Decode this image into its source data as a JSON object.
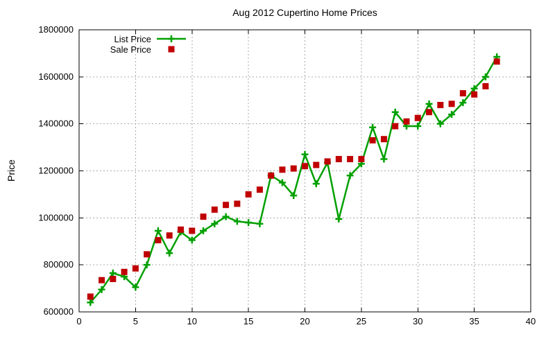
{
  "title": "Aug 2012 Cupertino Home Prices",
  "y_axis_label": "Price",
  "colors": {
    "list_price": "#00a000",
    "sale_price": "#c00000",
    "grid": "#a8a8a8",
    "axis": "#000000"
  },
  "legend": {
    "position": "top-left-inside",
    "entries": [
      {
        "label": "List Price",
        "marker": "line-with-cross",
        "color": "#00a000"
      },
      {
        "label": "Sale Price",
        "marker": "filled-square",
        "color": "#c00000"
      }
    ]
  },
  "chart_data": {
    "type": "line",
    "title": "Aug 2012 Cupertino Home Prices",
    "xlabel": "",
    "ylabel": "Price",
    "xlim": [
      0,
      40
    ],
    "ylim": [
      600000,
      1800000
    ],
    "x_ticks": [
      0,
      5,
      10,
      15,
      20,
      25,
      30,
      35,
      40
    ],
    "y_ticks": [
      600000,
      800000,
      1000000,
      1200000,
      1400000,
      1600000,
      1800000
    ],
    "grid": true,
    "grid_style": "dotted",
    "x": [
      1,
      2,
      3,
      4,
      5,
      6,
      7,
      8,
      9,
      10,
      11,
      12,
      13,
      14,
      15,
      16,
      17,
      18,
      19,
      20,
      21,
      22,
      23,
      24,
      25,
      26,
      27,
      28,
      29,
      30,
      31,
      32,
      33,
      34,
      35,
      36,
      37
    ],
    "series": [
      {
        "name": "List Price",
        "style": "line+cross",
        "color": "#00a000",
        "values": [
          640000,
          695000,
          765000,
          750000,
          705000,
          800000,
          945000,
          850000,
          940000,
          905000,
          945000,
          975000,
          1005000,
          985000,
          980000,
          975000,
          1180000,
          1150000,
          1095000,
          1270000,
          1145000,
          1235000,
          995000,
          1180000,
          1230000,
          1385000,
          1250000,
          1450000,
          1390000,
          1390000,
          1485000,
          1400000,
          1440000,
          1490000,
          1550000,
          1600000,
          1685000
        ]
      },
      {
        "name": "Sale Price",
        "style": "squares",
        "color": "#c00000",
        "values": [
          665000,
          735000,
          740000,
          770000,
          785000,
          845000,
          905000,
          925000,
          950000,
          945000,
          1005000,
          1035000,
          1055000,
          1060000,
          1100000,
          1120000,
          1180000,
          1205000,
          1210000,
          1220000,
          1225000,
          1240000,
          1250000,
          1250000,
          1250000,
          1330000,
          1335000,
          1390000,
          1410000,
          1425000,
          1450000,
          1480000,
          1485000,
          1530000,
          1525000,
          1560000,
          1665000
        ]
      }
    ]
  }
}
